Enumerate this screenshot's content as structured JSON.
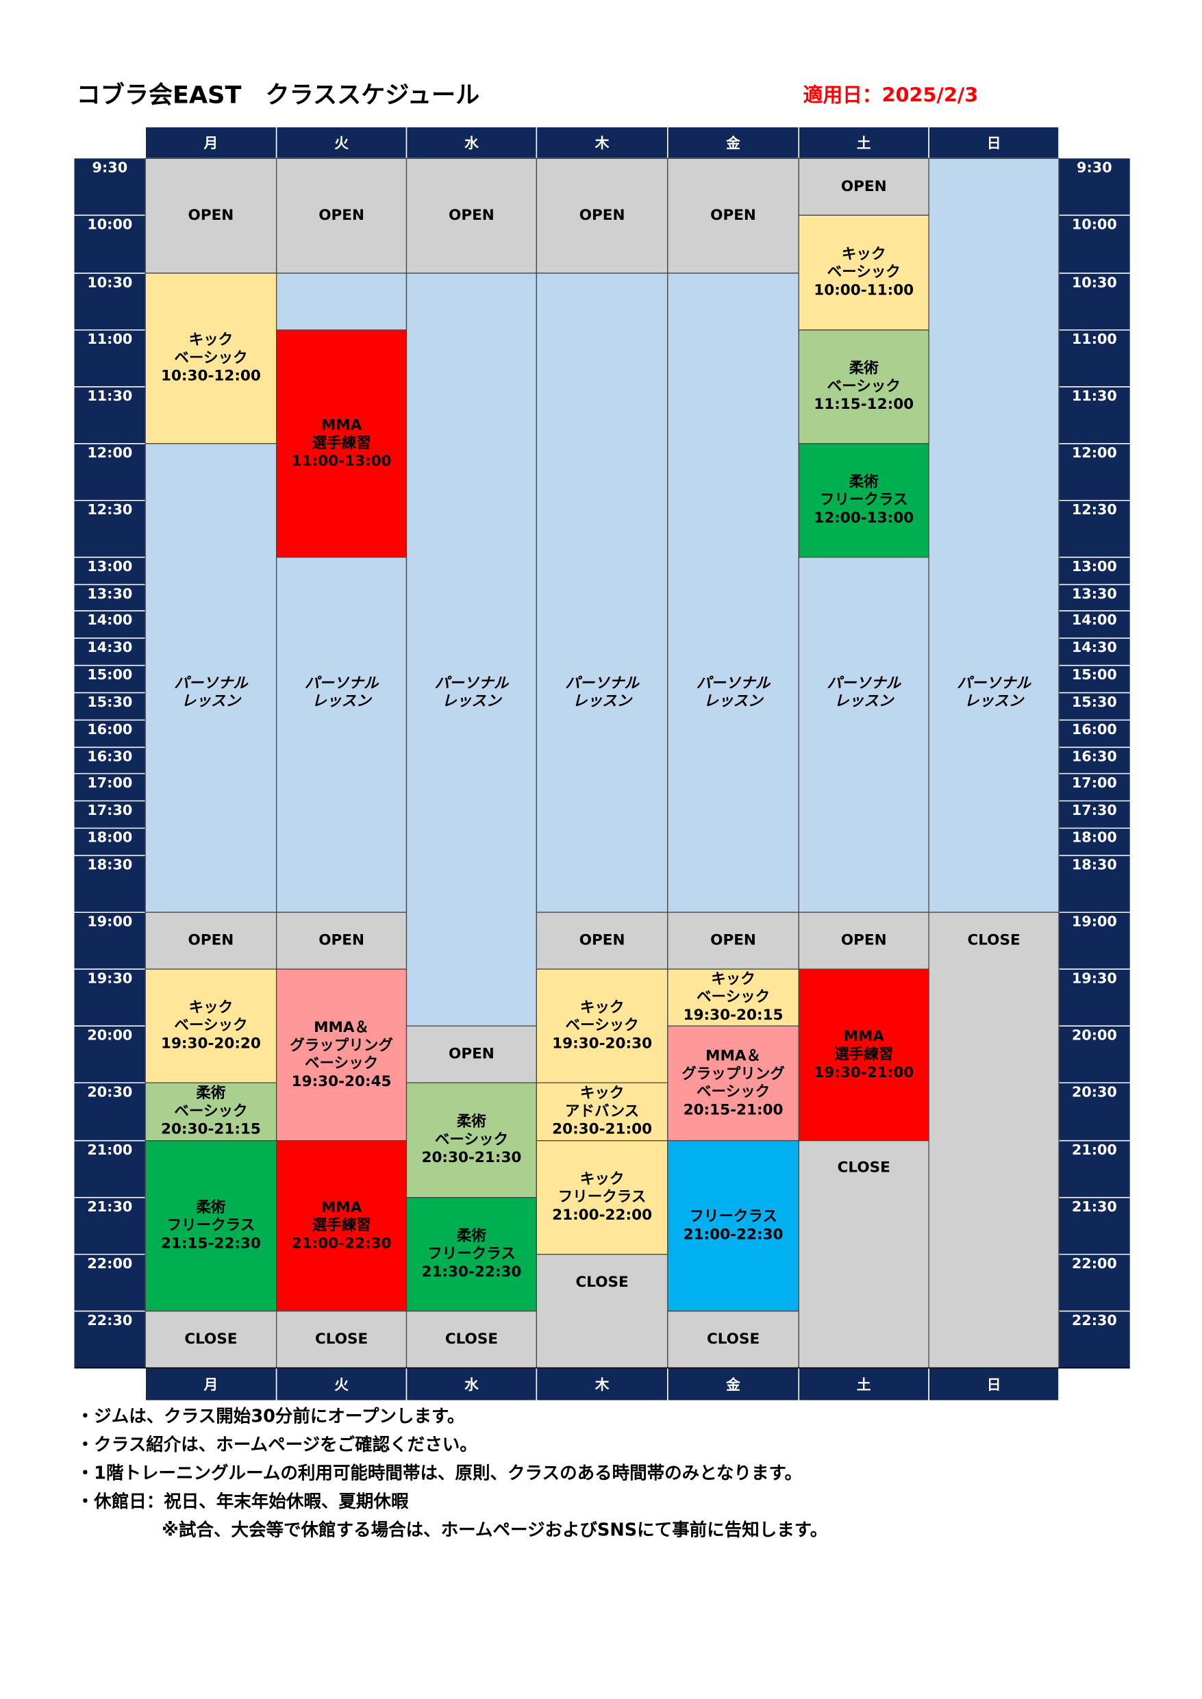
{
  "header": {
    "title": "コブラ会EAST　クラススケジュール",
    "date": "適用日：2025/2/3"
  },
  "days": [
    "月",
    "火",
    "水",
    "木",
    "金",
    "土",
    "日"
  ],
  "times": [
    "9:30",
    "10:00",
    "10:30",
    "11:00",
    "11:30",
    "12:00",
    "12:30",
    "13:00",
    "13:30",
    "14:00",
    "14:30",
    "15:00",
    "15:30",
    "16:00",
    "16:30",
    "17:00",
    "17:30",
    "18:00",
    "18:30",
    "19:00",
    "19:30",
    "20:00",
    "20:30",
    "21:00",
    "21:30",
    "22:00",
    "22:30"
  ],
  "columns": [
    {
      "blocks": [
        {
          "lines": [
            "OPEN"
          ]
        },
        {
          "lines": [
            "キック",
            "ベーシック",
            "10:30-12:00"
          ]
        },
        {
          "lines": [
            "パーソナル",
            "レッスン"
          ]
        },
        {
          "lines": [
            "OPEN"
          ]
        },
        {
          "lines": [
            "キック",
            "ベーシック",
            "19:30-20:20"
          ]
        },
        {
          "lines": [
            "柔術",
            "ベーシック",
            "20:30-21:15"
          ]
        },
        {
          "lines": [
            "柔術",
            "フリークラス",
            "21:15-22:30"
          ]
        },
        {
          "lines": [
            "CLOSE"
          ]
        }
      ]
    },
    {
      "blocks": [
        {
          "lines": [
            "OPEN"
          ]
        },
        {
          "lines": [
            "パーソナル",
            "レッスン"
          ]
        },
        {
          "lines": [
            "MMA",
            "選手練習",
            "11:00-13:00"
          ]
        },
        {
          "lines": [
            "OPEN"
          ]
        },
        {
          "lines": [
            "MMA＆",
            "グラップリング",
            "ベーシック",
            "19:30-20:45"
          ]
        },
        {
          "lines": [
            "MMA",
            "選手練習",
            "21:00-22:30"
          ]
        },
        {
          "lines": [
            "CLOSE"
          ]
        }
      ]
    },
    {
      "blocks": [
        {
          "lines": [
            "OPEN"
          ]
        },
        {
          "lines": [
            "パーソナル",
            "レッスン"
          ]
        },
        {
          "lines": [
            "OPEN"
          ]
        },
        {
          "lines": [
            "柔術",
            "ベーシック",
            "20:30-21:30"
          ]
        },
        {
          "lines": [
            "柔術",
            "フリークラス",
            "21:30-22:30"
          ]
        },
        {
          "lines": [
            "CLOSE"
          ]
        }
      ]
    },
    {
      "blocks": [
        {
          "lines": [
            "OPEN"
          ]
        },
        {
          "lines": [
            "パーソナル",
            "レッスン"
          ]
        },
        {
          "lines": [
            "OPEN"
          ]
        },
        {
          "lines": [
            "キック",
            "ベーシック",
            "19:30-20:30"
          ]
        },
        {
          "lines": [
            "キック",
            "アドバンス",
            "20:30-21:00"
          ]
        },
        {
          "lines": [
            "キック",
            "フリークラス",
            "21:00-22:00"
          ]
        },
        {
          "lines": [
            "CLOSE"
          ]
        }
      ]
    },
    {
      "blocks": [
        {
          "lines": [
            "OPEN"
          ]
        },
        {
          "lines": [
            "パーソナル",
            "レッスン"
          ]
        },
        {
          "lines": [
            "OPEN"
          ]
        },
        {
          "lines": [
            "キック",
            "ベーシック",
            "19:30-20:15"
          ]
        },
        {
          "lines": [
            "MMA＆",
            "グラップリング",
            "ベーシック",
            "20:15-21:00"
          ]
        },
        {
          "lines": [
            "フリークラス",
            "21:00-22:30"
          ]
        },
        {
          "lines": [
            "CLOSE"
          ]
        }
      ]
    },
    {
      "blocks": [
        {
          "lines": [
            "OPEN"
          ]
        },
        {
          "lines": [
            "キック",
            "ベーシック",
            "10:00-11:00"
          ]
        },
        {
          "lines": [
            "柔術",
            "ベーシック",
            "11:15-12:00"
          ]
        },
        {
          "lines": [
            "柔術",
            "フリークラス",
            "12:00-13:00"
          ]
        },
        {
          "lines": [
            "パーソナル",
            "レッスン"
          ]
        },
        {
          "lines": [
            "OPEN"
          ]
        },
        {
          "lines": [
            "MMA",
            "選手練習",
            "19:30-21:00"
          ]
        },
        {
          "lines": [
            "CLOSE"
          ]
        }
      ]
    },
    {
      "blocks": [
        {
          "lines": [
            "パーソナル",
            "レッスン"
          ]
        },
        {
          "lines": [
            "CLOSE"
          ]
        }
      ]
    }
  ],
  "notes": [
    "・ジムは、クラス開始30分前にオープンします。",
    "・クラス紹介は、ホームページをご確認ください。",
    "・1階トレーニングルームの利用可能時間帯は、原則、クラスのある時間帯のみとなります。",
    "・休館日：祝日、年末年始休暇、夏期休暇",
    "※試合、大会等で休館する場合は、ホームページおよびSNSにて事前に告知します。"
  ]
}
